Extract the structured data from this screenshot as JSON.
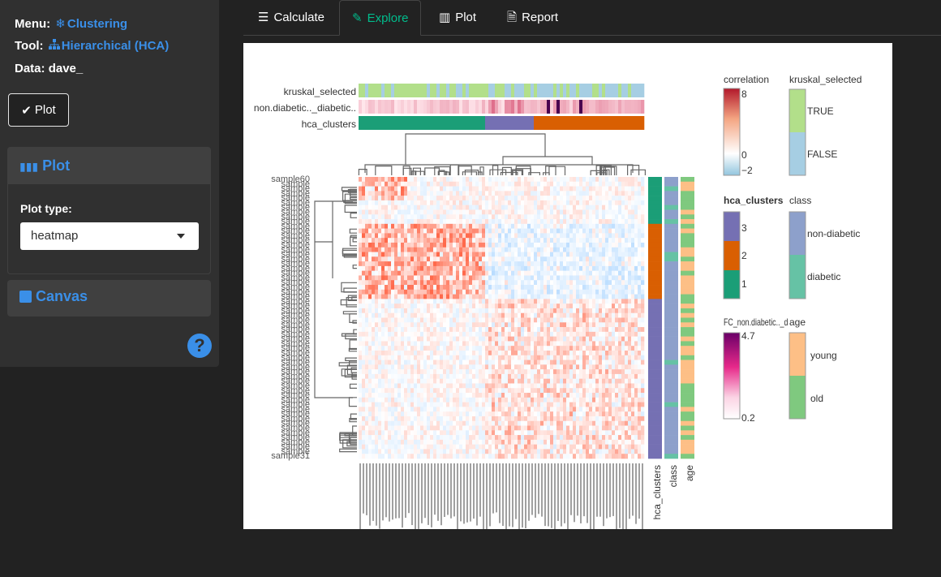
{
  "sidebar": {
    "menu_label": "Menu:",
    "menu_value": "Clustering",
    "tool_label": "Tool:",
    "tool_value": "Hierarchical (HCA)",
    "data_label": "Data:",
    "data_value": "dave_",
    "plot_button": "Plot",
    "plot_panel_title": "Plot",
    "plot_type_label": "Plot type:",
    "plot_type_value": "heatmap",
    "canvas_panel_title": "Canvas",
    "help_icon": "question-circle-icon"
  },
  "tabs": [
    {
      "label": "Calculate",
      "icon": "sliders-icon"
    },
    {
      "label": "Explore",
      "icon": "edit-icon",
      "active": true
    },
    {
      "label": "Plot",
      "icon": "bar-chart-icon"
    },
    {
      "label": "Report",
      "icon": "file-icon"
    }
  ],
  "heatmap": {
    "col_annotation_labels": [
      "kruskal_selected",
      "non.diabetic.._diabetic..",
      "hca_clusters"
    ],
    "row_annotation_labels": [
      "hca_clusters",
      "class",
      "age"
    ],
    "row_labels_visible": [
      "sample60",
      "sample31"
    ],
    "colors": {
      "cluster1": "#1b9e77",
      "cluster2": "#d95f02",
      "cluster3": "#7570b3",
      "class_non_diabetic": "#8da0cb",
      "class_diabetic": "#66c2a5",
      "age_young": "#fdbf86",
      "age_old": "#7fc97f",
      "kruskal_true": "#b2df8a",
      "kruskal_false": "#a6cee3"
    }
  },
  "legends": {
    "correlation": {
      "title": "correlation",
      "max": "8",
      "mid": "0",
      "min": "−2"
    },
    "kruskal_selected": {
      "title": "kruskal_selected",
      "items": [
        "TRUE",
        "FALSE"
      ]
    },
    "hca_clusters": {
      "title": "hca_clusters",
      "items": [
        "3",
        "2",
        "1"
      ]
    },
    "class": {
      "title": "class",
      "items": [
        "non-diabetic",
        "diabetic"
      ]
    },
    "fc": {
      "title": "FC_non.diabetic.._diabetic..",
      "max": "4.7",
      "min": "0.2"
    },
    "age": {
      "title": "age",
      "items": [
        "young",
        "old"
      ]
    }
  }
}
